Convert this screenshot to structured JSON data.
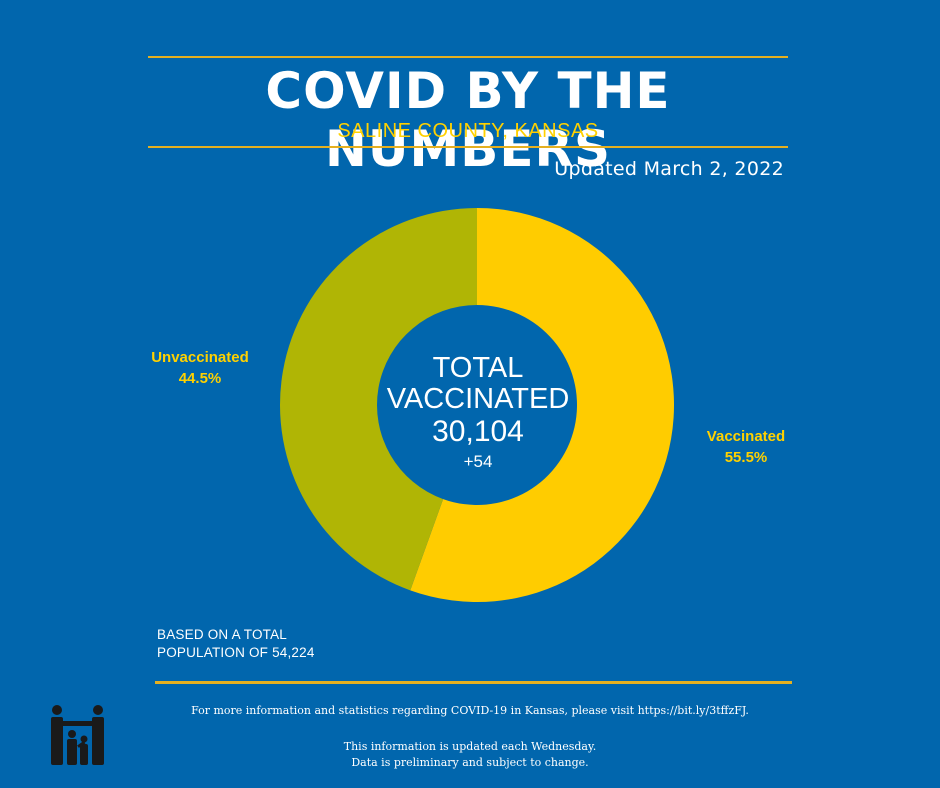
{
  "header": {
    "title": "COVID BY THE NUMBERS",
    "subtitle": "SALINE COUNTY, KANSAS",
    "updated": "Updated March 2, 2022"
  },
  "colors": {
    "background": "#0166ad",
    "vaccinated": "#ffcc00",
    "unvaccinated": "#b0b505",
    "accent": "#e5b020",
    "label": "#ffd100"
  },
  "chart_data": {
    "type": "pie",
    "donut": true,
    "start": "top",
    "direction": "clockwise",
    "series": [
      {
        "name": "Vaccinated",
        "value": 55.5,
        "label": "55.5%",
        "color": "#ffcc00"
      },
      {
        "name": "Unvaccinated",
        "value": 44.5,
        "label": "44.5%",
        "color": "#b0b505"
      }
    ],
    "center": {
      "title_line1": "TOTAL",
      "title_line2": "VACCINATED",
      "value": "30,104",
      "delta": "+54"
    }
  },
  "note": {
    "line1": "BASED ON A TOTAL",
    "line2": "POPULATION OF 54,224"
  },
  "footer": {
    "info": "For more information and statistics regarding COVID-19 in Kansas, please visit https://bit.ly/3tffzFJ.",
    "update_line1": "This information is updated each Wednesday.",
    "update_line2": "Data is preliminary and subject to change."
  },
  "logo": {
    "icon": "family-icon"
  }
}
